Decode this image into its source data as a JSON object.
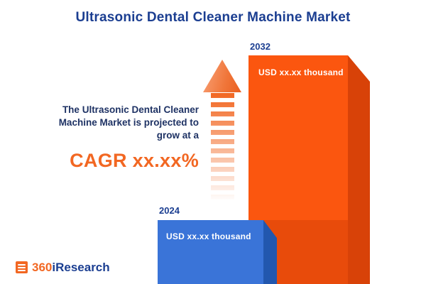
{
  "title": "Ultrasonic Dental Cleaner Machine Market",
  "projection": {
    "line1": "The Ultrasonic Dental Cleaner",
    "line2": "Machine Market is projected to",
    "line3": "grow at a",
    "cagr": "CAGR xx.xx%"
  },
  "chart_data": {
    "type": "bar",
    "title": "Ultrasonic Dental Cleaner Machine Market",
    "categories": [
      "2024",
      "2032"
    ],
    "values": [
      null,
      null
    ],
    "value_labels": [
      "USD xx.xx thousand",
      "USD xx.xx thousand"
    ],
    "xlabel": "",
    "ylabel": "",
    "legend": false,
    "grid": false,
    "annotations": [
      "CAGR xx.xx%"
    ],
    "colors": {
      "bar_2024": "#3a74d8",
      "bar_2024_side": "#2257ae",
      "bar_2032": "#fb560f",
      "bar_2032_side": "#d84208",
      "accent_orange": "#f26722",
      "navy": "#1b3e91"
    }
  },
  "logo": {
    "prefix": "360",
    "suffix": "iResearch"
  }
}
